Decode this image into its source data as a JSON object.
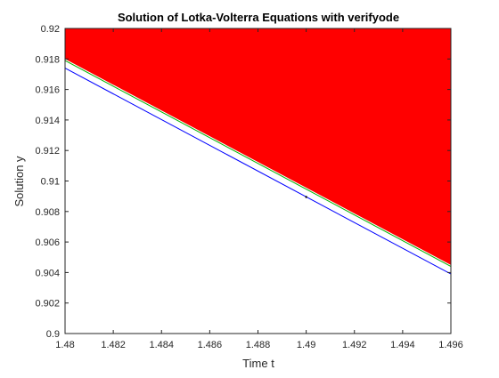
{
  "chart_data": {
    "type": "line",
    "title": "Solution of Lotka-Volterra Equations with verifyode",
    "xlabel": "Time t",
    "ylabel": "Solution y",
    "xlim": [
      1.48,
      1.496
    ],
    "ylim": [
      0.9,
      0.92
    ],
    "grid": false,
    "x_ticks": [
      1.48,
      1.482,
      1.484,
      1.486,
      1.488,
      1.49,
      1.492,
      1.494,
      1.496
    ],
    "x_tick_labels": [
      "1.48",
      "1.482",
      "1.484",
      "1.486",
      "1.488",
      "1.49",
      "1.492",
      "1.494",
      "1.496"
    ],
    "y_ticks": [
      0.9,
      0.902,
      0.904,
      0.906,
      0.908,
      0.91,
      0.912,
      0.914,
      0.916,
      0.918,
      0.92
    ],
    "y_tick_labels": [
      "0.9",
      "0.902",
      "0.904",
      "0.906",
      "0.908",
      "0.91",
      "0.912",
      "0.914",
      "0.916",
      "0.918",
      "0.92"
    ],
    "series": [
      {
        "kind": "area",
        "color": "#ff0000",
        "x": [
          1.48,
          1.496
        ],
        "y": [
          0.918,
          0.9045
        ],
        "fill_to": "top"
      },
      {
        "kind": "line",
        "color": "#00b000",
        "x": [
          1.48,
          1.496
        ],
        "y": [
          0.9179,
          0.9044
        ]
      },
      {
        "kind": "line",
        "color": "#0000ff",
        "x": [
          1.48,
          1.496
        ],
        "y": [
          0.9174,
          0.9039
        ]
      }
    ],
    "markers": [
      {
        "x": 1.49,
        "y": 0.90895,
        "color": "#000000"
      }
    ]
  }
}
